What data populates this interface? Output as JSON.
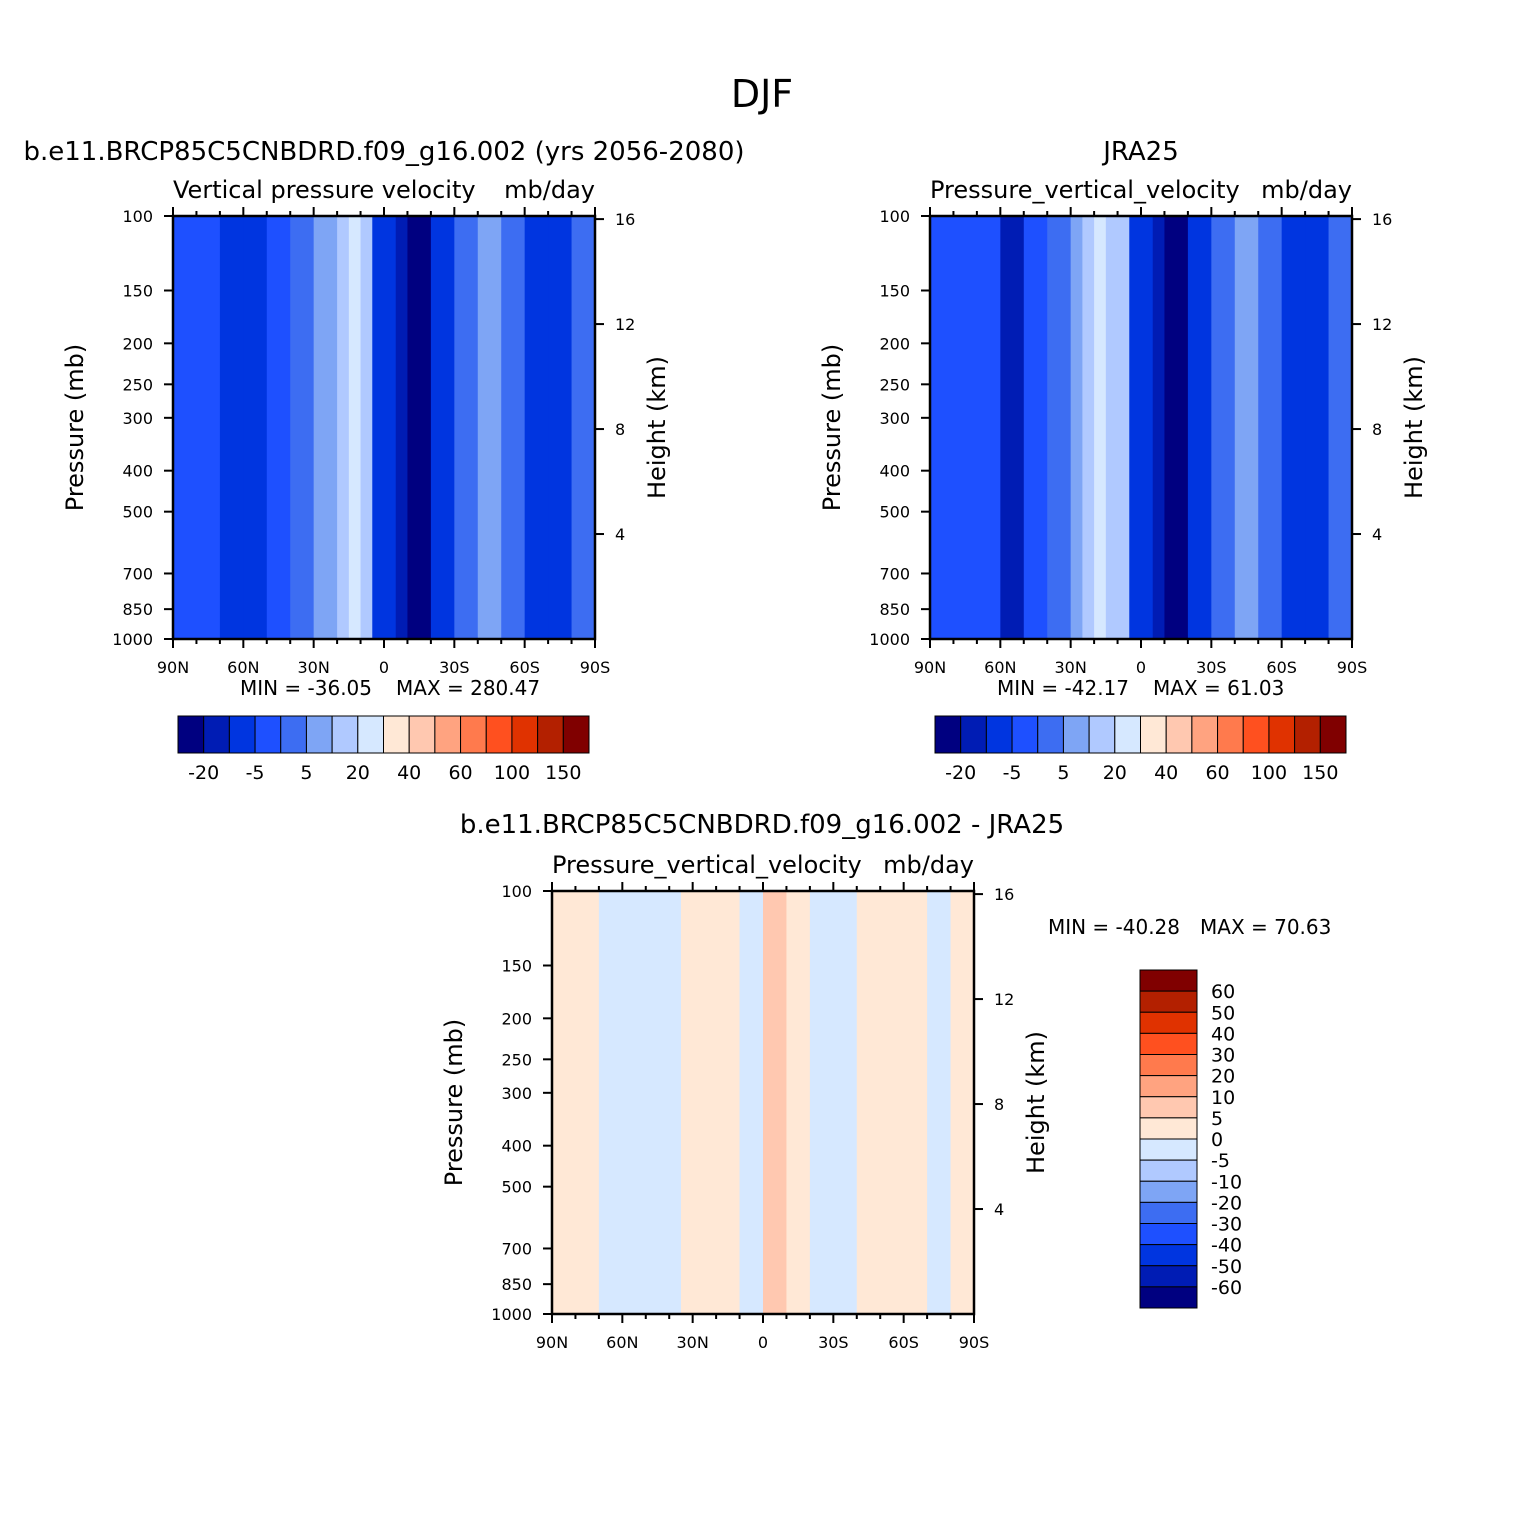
{
  "figure_title": "DJF",
  "colors": {
    "seq_16": [
      "#000080",
      "#001cb4",
      "#0035e0",
      "#1e50ff",
      "#3d6df2",
      "#7ea5f5",
      "#b0c9ff",
      "#d6e8ff",
      "#ffe8d6",
      "#ffc8b0",
      "#ffa380",
      "#ff7a4d",
      "#ff501f",
      "#e03200",
      "#b32000",
      "#800000"
    ],
    "diff_17": [
      "#000080",
      "#001cb4",
      "#0035e0",
      "#1e50ff",
      "#3d6df2",
      "#7ea5f5",
      "#b0c9ff",
      "#d6e8ff",
      "#ffe8d6",
      "#ffc8b0",
      "#ffa380",
      "#ff7a4d",
      "#ff501f",
      "#e03200",
      "#b32000",
      "#800000"
    ]
  },
  "chart_data": [
    {
      "type": "heatmap",
      "case_title": "b.e11.BRCP85C5CNBDRD.f09_g16.002 (yrs 2056-2080)",
      "title": "Vertical pressure velocity",
      "units": "mb/day",
      "xlabel": "",
      "ylabel": "Pressure (mb)",
      "y2label": "Height (km)",
      "x_ticks": [
        "90N",
        "60N",
        "30N",
        "0",
        "30S",
        "60S",
        "90S"
      ],
      "x_range": [
        90,
        -90
      ],
      "y_ticks": [
        "100",
        "150",
        "200",
        "250",
        "300",
        "400",
        "500",
        "700",
        "850",
        "1000"
      ],
      "y_range": [
        100,
        1000
      ],
      "y_scale": "log",
      "y2_ticks": [
        "4",
        "8",
        "12",
        "16"
      ],
      "min_label": "MIN = -36.05",
      "max_label": "MAX = 280.47",
      "colorbar_labels": [
        "-20",
        "-5",
        "5",
        "20",
        "40",
        "60",
        "100",
        "150"
      ],
      "colorbar_orientation": "horizontal",
      "bands": [
        {
          "lat": 90,
          "level": 3
        },
        {
          "lat": 80,
          "level": 3
        },
        {
          "lat": 70,
          "level": 2
        },
        {
          "lat": 60,
          "level": 2
        },
        {
          "lat": 50,
          "level": 3
        },
        {
          "lat": 40,
          "level": 4
        },
        {
          "lat": 30,
          "level": 5
        },
        {
          "lat": 20,
          "level": 6
        },
        {
          "lat": 15,
          "level": 7
        },
        {
          "lat": 10,
          "level": 6
        },
        {
          "lat": 5,
          "level": 2
        },
        {
          "lat": 0,
          "level": 2
        },
        {
          "lat": -5,
          "level": 1
        },
        {
          "lat": -10,
          "level": 0
        },
        {
          "lat": -20,
          "level": 2
        },
        {
          "lat": -30,
          "level": 4
        },
        {
          "lat": -40,
          "level": 5
        },
        {
          "lat": -50,
          "level": 4
        },
        {
          "lat": -60,
          "level": 2
        },
        {
          "lat": -70,
          "level": 2
        },
        {
          "lat": -80,
          "level": 4
        },
        {
          "lat": -90,
          "level": 4
        }
      ]
    },
    {
      "type": "heatmap",
      "case_title": "JRA25",
      "title": "Pressure_vertical_velocity",
      "units": "mb/day",
      "xlabel": "",
      "ylabel": "Pressure (mb)",
      "y2label": "Height (km)",
      "x_ticks": [
        "90N",
        "60N",
        "30N",
        "0",
        "30S",
        "60S",
        "90S"
      ],
      "x_range": [
        90,
        -90
      ],
      "y_ticks": [
        "100",
        "150",
        "200",
        "250",
        "300",
        "400",
        "500",
        "700",
        "850",
        "1000"
      ],
      "y_range": [
        100,
        1000
      ],
      "y_scale": "log",
      "y2_ticks": [
        "4",
        "8",
        "12",
        "16"
      ],
      "min_label": "MIN = -42.17",
      "max_label": "MAX = 61.03",
      "colorbar_labels": [
        "-20",
        "-5",
        "5",
        "20",
        "40",
        "60",
        "100",
        "150"
      ],
      "colorbar_orientation": "horizontal",
      "bands": [
        {
          "lat": 90,
          "level": 3
        },
        {
          "lat": 80,
          "level": 3
        },
        {
          "lat": 70,
          "level": 3
        },
        {
          "lat": 60,
          "level": 1
        },
        {
          "lat": 50,
          "level": 3
        },
        {
          "lat": 40,
          "level": 4
        },
        {
          "lat": 30,
          "level": 5
        },
        {
          "lat": 25,
          "level": 6
        },
        {
          "lat": 20,
          "level": 7
        },
        {
          "lat": 15,
          "level": 6
        },
        {
          "lat": 5,
          "level": 2
        },
        {
          "lat": 0,
          "level": 2
        },
        {
          "lat": -5,
          "level": 1
        },
        {
          "lat": -10,
          "level": 0
        },
        {
          "lat": -20,
          "level": 2
        },
        {
          "lat": -30,
          "level": 4
        },
        {
          "lat": -40,
          "level": 5
        },
        {
          "lat": -50,
          "level": 4
        },
        {
          "lat": -60,
          "level": 2
        },
        {
          "lat": -70,
          "level": 2
        },
        {
          "lat": -80,
          "level": 4
        },
        {
          "lat": -90,
          "level": 4
        }
      ]
    },
    {
      "type": "heatmap",
      "case_title": "b.e11.BRCP85C5CNBDRD.f09_g16.002 - JRA25",
      "title": "Pressure_vertical_velocity",
      "units": "mb/day",
      "xlabel": "",
      "ylabel": "Pressure (mb)",
      "y2label": "Height (km)",
      "x_ticks": [
        "90N",
        "60N",
        "30N",
        "0",
        "30S",
        "60S",
        "90S"
      ],
      "x_range": [
        90,
        -90
      ],
      "y_ticks": [
        "100",
        "150",
        "200",
        "250",
        "300",
        "400",
        "500",
        "700",
        "850",
        "1000"
      ],
      "y_range": [
        100,
        1000
      ],
      "y_scale": "log",
      "y2_ticks": [
        "4",
        "8",
        "12",
        "16"
      ],
      "min_label": "MIN = -40.28",
      "max_label": "MAX = 70.63",
      "colorbar_labels": [
        "60",
        "50",
        "40",
        "30",
        "20",
        "10",
        "5",
        "0",
        "-5",
        "-10",
        "-20",
        "-30",
        "-40",
        "-50",
        "-60"
      ],
      "colorbar_orientation": "vertical",
      "bands": [
        {
          "lat": 90,
          "level": 8
        },
        {
          "lat": 80,
          "level": 8
        },
        {
          "lat": 70,
          "level": 7
        },
        {
          "lat": 60,
          "level": 7
        },
        {
          "lat": 50,
          "level": 7
        },
        {
          "lat": 40,
          "level": 7
        },
        {
          "lat": 35,
          "level": 8
        },
        {
          "lat": 30,
          "level": 8
        },
        {
          "lat": 20,
          "level": 8
        },
        {
          "lat": 10,
          "level": 7
        },
        {
          "lat": 0,
          "level": 9
        },
        {
          "lat": -10,
          "level": 8
        },
        {
          "lat": -20,
          "level": 7
        },
        {
          "lat": -30,
          "level": 7
        },
        {
          "lat": -40,
          "level": 8
        },
        {
          "lat": -50,
          "level": 8
        },
        {
          "lat": -60,
          "level": 8
        },
        {
          "lat": -70,
          "level": 7
        },
        {
          "lat": -80,
          "level": 8
        },
        {
          "lat": -90,
          "level": 8
        }
      ]
    }
  ]
}
